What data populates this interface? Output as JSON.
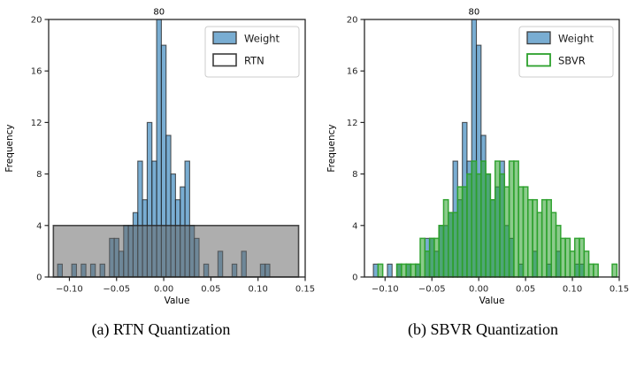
{
  "figure": {
    "captions": [
      "(a) RTN Quantization",
      "(b) SBVR Quantization"
    ]
  },
  "colors": {
    "weight_fill": "#1f77b4",
    "weight_fill_rendered": "#79add2",
    "rtn_fill": "#646464",
    "rtn_fill_rendered": "#ababab",
    "sbvr_fill": "#2ca02c",
    "sbvr_fill_rendered": "#8bcb8b",
    "sbvr_edge": "#2ca02c",
    "bar_edge": "#232323",
    "axis_color": "#262626",
    "legend_border": "#cccccc",
    "text_color": "#000000"
  },
  "chart_data": [
    {
      "type": "bar",
      "subtype": "overlaid-histogram",
      "caption": "(a) RTN Quantization",
      "xlabel": "Value",
      "ylabel": "Frequency",
      "xlim": [
        -0.122,
        0.15
      ],
      "ylim": [
        0,
        20
      ],
      "xticks": [
        -0.1,
        -0.05,
        0.0,
        0.05,
        0.1,
        0.15
      ],
      "yticks": [
        0,
        4,
        8,
        12,
        16,
        20
      ],
      "grid": false,
      "annotation": {
        "text": "80",
        "x": -0.005,
        "meaning": "true count of tallest Weight bin, bar clipped at y-axis top of 20"
      },
      "legend": {
        "position": "upper right",
        "entries": [
          {
            "label": "Weight",
            "swatch": "weight"
          },
          {
            "label": "RTN",
            "swatch": "rtn"
          }
        ]
      },
      "bins": {
        "start": -0.1225,
        "width": 0.005
      },
      "series": [
        {
          "name": "Weight",
          "style": "weight",
          "heights": [
            0,
            0,
            1,
            0,
            0,
            1,
            0,
            1,
            0,
            1,
            0,
            1,
            0,
            3,
            3,
            2,
            4,
            4,
            5,
            9,
            6,
            12,
            9,
            80,
            18,
            11,
            8,
            6,
            7,
            9,
            4,
            3,
            0,
            1,
            0,
            0,
            2,
            0,
            0,
            1,
            0,
            2,
            0,
            0,
            0,
            1,
            1,
            0,
            0,
            0,
            0,
            0,
            0,
            0
          ]
        },
        {
          "name": "RTN",
          "style": "rtn",
          "rect": {
            "x_start": -0.117,
            "x_end": 0.143,
            "height": 4
          }
        }
      ]
    },
    {
      "type": "bar",
      "subtype": "overlaid-histogram",
      "caption": "(b) SBVR Quantization",
      "xlabel": "Value",
      "ylabel": "Frequency",
      "xlim": [
        -0.122,
        0.15
      ],
      "ylim": [
        0,
        20
      ],
      "xticks": [
        -0.1,
        -0.05,
        0.0,
        0.05,
        0.1,
        0.15
      ],
      "yticks": [
        0,
        4,
        8,
        12,
        16,
        20
      ],
      "grid": false,
      "annotation": {
        "text": "80",
        "x": -0.005,
        "meaning": "true count of tallest Weight bin, bar clipped at y-axis top of 20"
      },
      "legend": {
        "position": "upper right",
        "entries": [
          {
            "label": "Weight",
            "swatch": "weight"
          },
          {
            "label": "SBVR",
            "swatch": "sbvr"
          }
        ]
      },
      "bins": {
        "start": -0.1225,
        "width": 0.005
      },
      "series": [
        {
          "name": "Weight",
          "style": "weight",
          "heights": [
            0,
            0,
            1,
            0,
            0,
            1,
            0,
            1,
            0,
            1,
            0,
            1,
            0,
            3,
            3,
            2,
            4,
            4,
            5,
            9,
            6,
            12,
            9,
            80,
            18,
            11,
            8,
            6,
            7,
            9,
            4,
            3,
            0,
            1,
            0,
            0,
            2,
            0,
            0,
            1,
            0,
            2,
            0,
            0,
            0,
            1,
            1,
            0,
            0,
            0,
            0,
            0,
            0,
            0
          ]
        },
        {
          "name": "SBVR",
          "style": "sbvr",
          "heights": [
            0,
            0,
            0,
            1,
            0,
            0,
            0,
            1,
            1,
            1,
            1,
            1,
            3,
            2,
            3,
            3,
            4,
            6,
            5,
            5,
            7,
            7,
            8,
            9,
            8,
            9,
            8,
            6,
            9,
            8,
            7,
            9,
            9,
            7,
            7,
            6,
            6,
            5,
            6,
            6,
            5,
            4,
            3,
            3,
            2,
            3,
            3,
            2,
            1,
            1,
            0,
            0,
            0,
            1
          ]
        }
      ]
    }
  ]
}
